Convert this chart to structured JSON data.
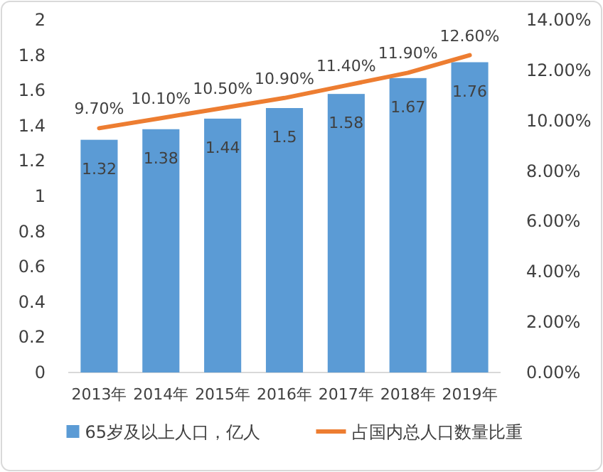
{
  "chart_data": {
    "type": "bar",
    "categories": [
      "2013年",
      "2014年",
      "2015年",
      "2016年",
      "2017年",
      "2018年",
      "2019年"
    ],
    "series": [
      {
        "name": "65岁及以上人口，亿人",
        "color": "#5b9bd5",
        "values": [
          1.32,
          1.38,
          1.44,
          1.5,
          1.58,
          1.67,
          1.76
        ],
        "value_labels": [
          "1.32",
          "1.38",
          "1.44",
          "1.5",
          "1.58",
          "1.67",
          "1.76"
        ]
      },
      {
        "name": "占国内总人口数量比重",
        "type": "line",
        "axis": "y2",
        "color": "#ed7d31",
        "values": [
          9.7,
          10.1,
          10.5,
          10.9,
          11.4,
          11.9,
          12.6
        ],
        "value_labels": [
          "9.70%",
          "10.10%",
          "10.50%",
          "10.90%",
          "11.40%",
          "11.90%",
          "12.60%"
        ]
      }
    ],
    "ylim": [
      0,
      2
    ],
    "yticks": [
      0,
      0.2,
      0.4,
      0.6,
      0.8,
      1,
      1.2,
      1.4,
      1.6,
      1.8,
      2
    ],
    "y2lim": [
      0,
      14
    ],
    "y2ticks": [
      {
        "value": 0,
        "label": "0.00%"
      },
      {
        "value": 2,
        "label": "2.00%"
      },
      {
        "value": 4,
        "label": "4.00%"
      },
      {
        "value": 6,
        "label": "6.00%"
      },
      {
        "value": 8,
        "label": "8.00%"
      },
      {
        "value": 10,
        "label": "10.00%"
      },
      {
        "value": 12,
        "label": "12.00%"
      },
      {
        "value": 14,
        "label": "14.00%"
      }
    ],
    "legend": "bottom"
  }
}
